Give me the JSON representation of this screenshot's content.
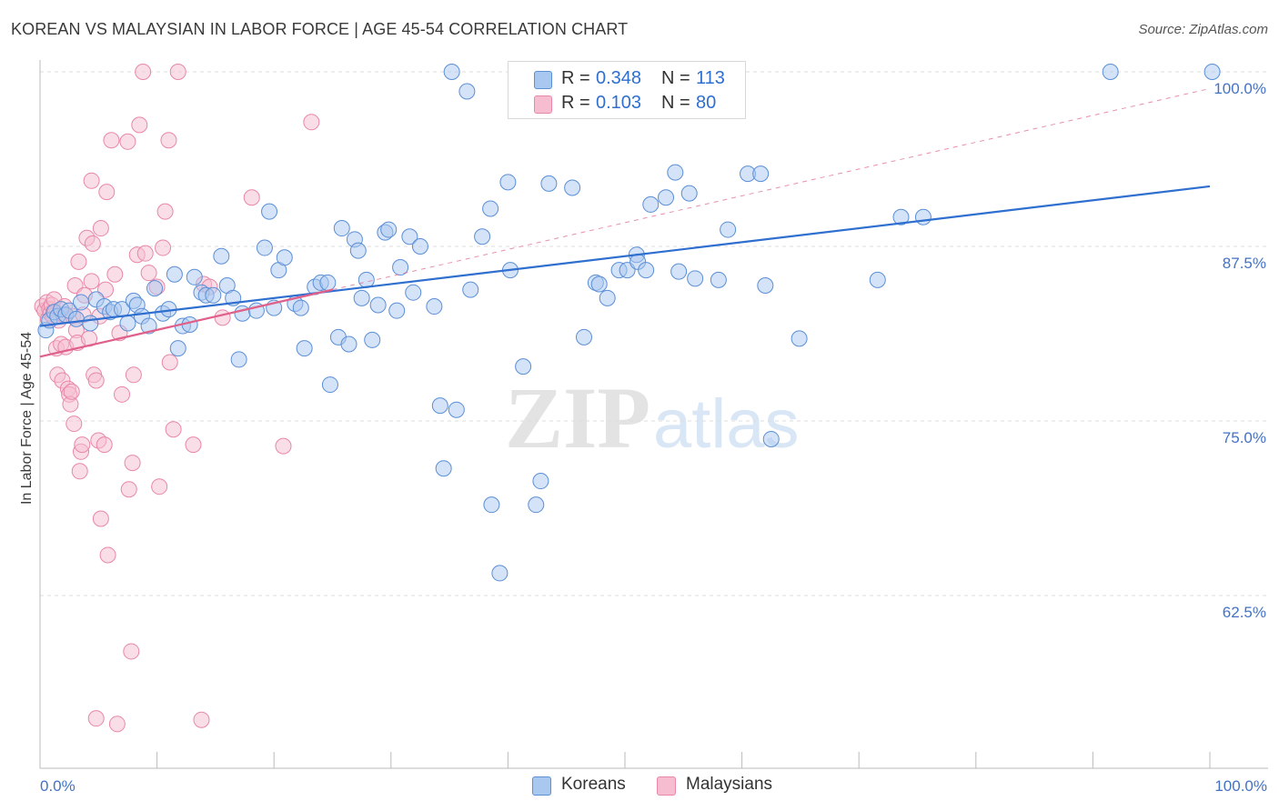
{
  "header": {
    "title": "KOREAN VS MALAYSIAN IN LABOR FORCE | AGE 45-54 CORRELATION CHART",
    "source": "Source: ZipAtlas.com"
  },
  "watermark": {
    "zip": "ZIP",
    "atlas": "atlas"
  },
  "legend_top": [
    {
      "r_label": "R =",
      "r_value": "0.348",
      "n_label": "N =",
      "n_value": "113"
    },
    {
      "r_label": "R =",
      "r_value": "0.103",
      "n_label": "N =",
      "n_value": "80"
    }
  ],
  "legend_bottom": [
    {
      "label": "Koreans"
    },
    {
      "label": "Malaysians"
    }
  ],
  "colors": {
    "blue_fill": "#a9c8ef",
    "blue_stroke": "#5b8fd6",
    "blue_line": "#2f6fcf",
    "pink_fill": "#f6bdd0",
    "pink_stroke": "#e887a8",
    "pink_line": "#e0608a",
    "axis_label": "#4472c4",
    "grid": "#dddddd"
  },
  "chart_data": {
    "type": "scatter",
    "title": "KOREAN VS MALAYSIAN IN LABOR FORCE | AGE 45-54 CORRELATION CHART",
    "ylabel": "In Labor Force | Age 45-54",
    "xlabel": "",
    "x_tick_labels": [
      "0.0%",
      "100.0%"
    ],
    "y_tick_labels": [
      "100.0%",
      "87.5%",
      "75.0%",
      "62.5%"
    ],
    "y_ticks": [
      100,
      87.5,
      75,
      62.5
    ],
    "xlim": [
      0,
      105
    ],
    "ylim": [
      50.5,
      102
    ],
    "grid": true,
    "legend_position": "bottom",
    "series": [
      {
        "name": "Koreans",
        "r": 0.348,
        "n": 113,
        "trend": {
          "x": [
            0,
            100
          ],
          "y": [
            81.8,
            91.8
          ]
        },
        "points": [
          [
            0.5,
            81.5
          ],
          [
            0.8,
            82.2
          ],
          [
            1.2,
            82.8
          ],
          [
            1.5,
            82.5
          ],
          [
            1.8,
            83.0
          ],
          [
            2.2,
            82.6
          ],
          [
            2.5,
            82.9
          ],
          [
            3.1,
            82.3
          ],
          [
            3.5,
            83.5
          ],
          [
            4.3,
            82.0
          ],
          [
            4.8,
            83.7
          ],
          [
            5.5,
            83.2
          ],
          [
            6.0,
            82.8
          ],
          [
            6.3,
            83.0
          ],
          [
            7.0,
            83.0
          ],
          [
            7.5,
            82.0
          ],
          [
            8.0,
            83.6
          ],
          [
            8.3,
            83.3
          ],
          [
            8.7,
            82.5
          ],
          [
            9.3,
            81.8
          ],
          [
            9.8,
            84.5
          ],
          [
            10.5,
            82.7
          ],
          [
            11.0,
            83.0
          ],
          [
            11.5,
            85.5
          ],
          [
            11.8,
            80.2
          ],
          [
            12.2,
            81.8
          ],
          [
            12.8,
            81.9
          ],
          [
            13.2,
            85.3
          ],
          [
            13.8,
            84.2
          ],
          [
            14.2,
            84.0
          ],
          [
            14.8,
            84.0
          ],
          [
            15.5,
            86.8
          ],
          [
            16.0,
            84.7
          ],
          [
            16.5,
            83.8
          ],
          [
            17.0,
            79.4
          ],
          [
            17.3,
            82.7
          ],
          [
            18.5,
            82.9
          ],
          [
            19.2,
            87.4
          ],
          [
            19.6,
            90.0
          ],
          [
            20.0,
            83.1
          ],
          [
            20.4,
            85.8
          ],
          [
            20.9,
            86.7
          ],
          [
            21.8,
            83.4
          ],
          [
            22.3,
            83.1
          ],
          [
            22.6,
            80.2
          ],
          [
            23.5,
            84.6
          ],
          [
            24.0,
            84.9
          ],
          [
            24.6,
            84.9
          ],
          [
            24.8,
            77.6
          ],
          [
            25.5,
            81.0
          ],
          [
            25.8,
            88.8
          ],
          [
            26.4,
            80.5
          ],
          [
            26.9,
            88.0
          ],
          [
            27.2,
            87.2
          ],
          [
            27.5,
            83.8
          ],
          [
            27.9,
            85.1
          ],
          [
            28.4,
            80.8
          ],
          [
            28.9,
            83.3
          ],
          [
            29.5,
            88.5
          ],
          [
            29.8,
            88.7
          ],
          [
            30.5,
            82.9
          ],
          [
            30.8,
            86.0
          ],
          [
            31.6,
            88.2
          ],
          [
            31.9,
            84.2
          ],
          [
            32.5,
            87.5
          ],
          [
            33.7,
            83.2
          ],
          [
            34.2,
            76.1
          ],
          [
            34.5,
            71.6
          ],
          [
            35.2,
            100.0
          ],
          [
            35.6,
            75.8
          ],
          [
            36.5,
            98.6
          ],
          [
            36.8,
            84.4
          ],
          [
            37.8,
            88.2
          ],
          [
            38.5,
            90.2
          ],
          [
            38.6,
            69.0
          ],
          [
            39.3,
            64.1
          ],
          [
            40.0,
            92.1
          ],
          [
            40.2,
            85.8
          ],
          [
            41.3,
            78.9
          ],
          [
            42.4,
            69.0
          ],
          [
            42.8,
            70.7
          ],
          [
            43.5,
            92.0
          ],
          [
            45.5,
            91.7
          ],
          [
            46.5,
            81.0
          ],
          [
            47.5,
            84.9
          ],
          [
            47.8,
            84.8
          ],
          [
            48.5,
            83.8
          ],
          [
            49.5,
            85.8
          ],
          [
            50.2,
            85.8
          ],
          [
            51.0,
            86.9
          ],
          [
            51.1,
            86.4
          ],
          [
            51.8,
            85.8
          ],
          [
            52.2,
            90.5
          ],
          [
            53.5,
            91.0
          ],
          [
            54.3,
            92.8
          ],
          [
            54.6,
            85.7
          ],
          [
            55.5,
            91.3
          ],
          [
            56.0,
            85.2
          ],
          [
            58.0,
            85.1
          ],
          [
            58.8,
            88.7
          ],
          [
            60.5,
            92.7
          ],
          [
            61.6,
            92.7
          ],
          [
            62.0,
            84.7
          ],
          [
            62.5,
            73.7
          ],
          [
            64.9,
            80.9
          ],
          [
            71.6,
            85.1
          ],
          [
            73.6,
            89.6
          ],
          [
            75.5,
            89.6
          ],
          [
            91.5,
            100.0
          ],
          [
            100.2,
            100.0
          ]
        ]
      },
      {
        "name": "Malaysians",
        "r": 0.103,
        "n": 80,
        "trend": {
          "x": [
            0,
            25
          ],
          "y": [
            79.6,
            84.4
          ]
        },
        "points": [
          [
            0.2,
            83.2
          ],
          [
            0.4,
            82.9
          ],
          [
            0.6,
            83.5
          ],
          [
            0.7,
            82.3
          ],
          [
            0.8,
            83.0
          ],
          [
            0.9,
            82.7
          ],
          [
            1.0,
            83.3
          ],
          [
            1.1,
            82.5
          ],
          [
            1.2,
            83.7
          ],
          [
            1.3,
            82.8
          ],
          [
            1.4,
            80.2
          ],
          [
            1.5,
            78.3
          ],
          [
            1.6,
            82.2
          ],
          [
            1.8,
            80.5
          ],
          [
            1.9,
            77.9
          ],
          [
            2.0,
            82.6
          ],
          [
            2.1,
            83.2
          ],
          [
            2.2,
            80.3
          ],
          [
            2.4,
            77.3
          ],
          [
            2.5,
            76.9
          ],
          [
            2.6,
            76.2
          ],
          [
            2.7,
            77.1
          ],
          [
            2.8,
            82.5
          ],
          [
            2.9,
            74.8
          ],
          [
            3.0,
            84.7
          ],
          [
            3.1,
            81.5
          ],
          [
            3.2,
            80.6
          ],
          [
            3.3,
            86.4
          ],
          [
            3.4,
            71.4
          ],
          [
            3.5,
            72.8
          ],
          [
            3.6,
            73.3
          ],
          [
            3.7,
            82.6
          ],
          [
            3.8,
            84.0
          ],
          [
            4.0,
            88.1
          ],
          [
            4.2,
            80.9
          ],
          [
            4.4,
            85.0
          ],
          [
            4.4,
            92.2
          ],
          [
            4.5,
            87.7
          ],
          [
            4.6,
            78.3
          ],
          [
            4.8,
            77.9
          ],
          [
            4.8,
            53.7
          ],
          [
            5.0,
            73.6
          ],
          [
            5.1,
            82.5
          ],
          [
            5.2,
            88.8
          ],
          [
            5.2,
            68.0
          ],
          [
            5.5,
            73.3
          ],
          [
            5.6,
            84.4
          ],
          [
            5.7,
            91.4
          ],
          [
            5.8,
            65.4
          ],
          [
            6.1,
            95.1
          ],
          [
            6.4,
            85.5
          ],
          [
            6.6,
            53.3
          ],
          [
            6.8,
            81.3
          ],
          [
            7.0,
            76.9
          ],
          [
            7.5,
            95.0
          ],
          [
            7.6,
            70.1
          ],
          [
            7.8,
            58.5
          ],
          [
            7.9,
            72.0
          ],
          [
            8.0,
            78.3
          ],
          [
            8.3,
            86.9
          ],
          [
            8.5,
            96.2
          ],
          [
            8.8,
            100.0
          ],
          [
            9.0,
            87.0
          ],
          [
            9.3,
            85.6
          ],
          [
            10.0,
            84.6
          ],
          [
            10.2,
            70.3
          ],
          [
            10.5,
            87.4
          ],
          [
            10.7,
            90.0
          ],
          [
            11.0,
            95.1
          ],
          [
            11.1,
            79.2
          ],
          [
            11.4,
            74.4
          ],
          [
            11.8,
            100.0
          ],
          [
            13.1,
            73.3
          ],
          [
            13.8,
            53.6
          ],
          [
            14.0,
            84.8
          ],
          [
            14.5,
            84.6
          ],
          [
            15.6,
            82.4
          ],
          [
            18.1,
            91.0
          ],
          [
            20.8,
            73.2
          ],
          [
            23.2,
            96.4
          ]
        ]
      }
    ]
  }
}
